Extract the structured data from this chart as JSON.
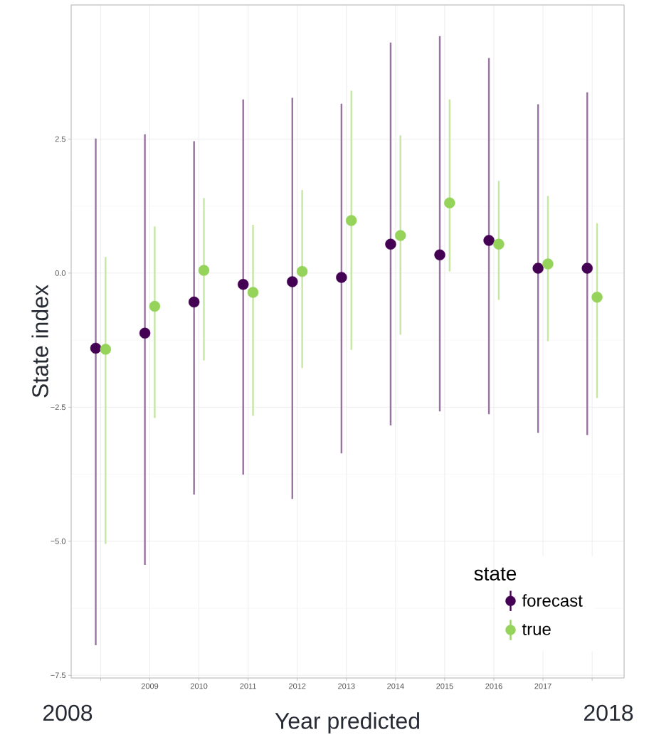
{
  "chart_data": {
    "type": "scatter",
    "xlabel": "Year predicted",
    "ylabel": "State index",
    "legend_title": "state",
    "xlim": [
      2007.4,
      2018.65
    ],
    "ylim": [
      -7.55,
      5.0
    ],
    "xticks": [
      {
        "value": 2008,
        "label": null
      },
      2009,
      2010,
      2011,
      2012,
      2013,
      2014,
      2015,
      2016,
      2017,
      {
        "value": 2018,
        "label": null
      }
    ],
    "annotations": [
      "2008",
      "2018"
    ],
    "yticks": [
      2.5,
      {
        "value": 0,
        "label": "0.0"
      },
      {
        "value": -2.5,
        "label": "−2.5"
      },
      {
        "value": -5,
        "label": "−5.0"
      },
      {
        "value": -7.5,
        "label": "−7.5"
      }
    ],
    "grid": true,
    "legend": "bottom right",
    "marker": "circle",
    "series": [
      {
        "name": "forecast",
        "color": "#440154",
        "x": [
          2007.9,
          2008.9,
          2009.9,
          2010.9,
          2011.9,
          2012.9,
          2013.9,
          2014.9,
          2015.9,
          2016.9,
          2017.9
        ],
        "values": [
          -1.4,
          -1.12,
          -0.54,
          -0.21,
          -0.16,
          -0.08,
          0.54,
          0.34,
          0.61,
          0.09,
          0.09
        ],
        "errors": [
          [
            -6.94,
            2.51
          ],
          [
            -5.44,
            2.59
          ],
          [
            -4.13,
            2.46
          ],
          [
            -3.76,
            3.24
          ],
          [
            -4.21,
            3.27
          ],
          [
            -3.36,
            3.16
          ],
          [
            -2.84,
            4.3
          ],
          [
            -2.58,
            4.42
          ],
          [
            -2.63,
            4.01
          ],
          [
            -2.98,
            3.15
          ],
          [
            -3.02,
            3.37
          ]
        ]
      },
      {
        "name": "true",
        "color": "#95d35a",
        "x": [
          2008.1,
          2009.1,
          2010.1,
          2011.1,
          2012.1,
          2013.1,
          2014.1,
          2015.1,
          2016.1,
          2017.1,
          2018.1
        ],
        "values": [
          -1.42,
          -0.62,
          0.05,
          -0.36,
          0.03,
          0.98,
          0.7,
          1.31,
          0.54,
          0.17,
          -0.45
        ],
        "errors": [
          [
            -5.05,
            0.3
          ],
          [
            -2.7,
            0.87
          ],
          [
            -1.63,
            1.4
          ],
          [
            -2.66,
            0.9
          ],
          [
            -1.77,
            1.55
          ],
          [
            -1.43,
            3.4
          ],
          [
            -1.15,
            2.57
          ],
          [
            0.03,
            3.24
          ],
          [
            -0.5,
            1.72
          ],
          [
            -1.27,
            1.44
          ],
          [
            -2.33,
            0.93
          ]
        ]
      }
    ]
  }
}
